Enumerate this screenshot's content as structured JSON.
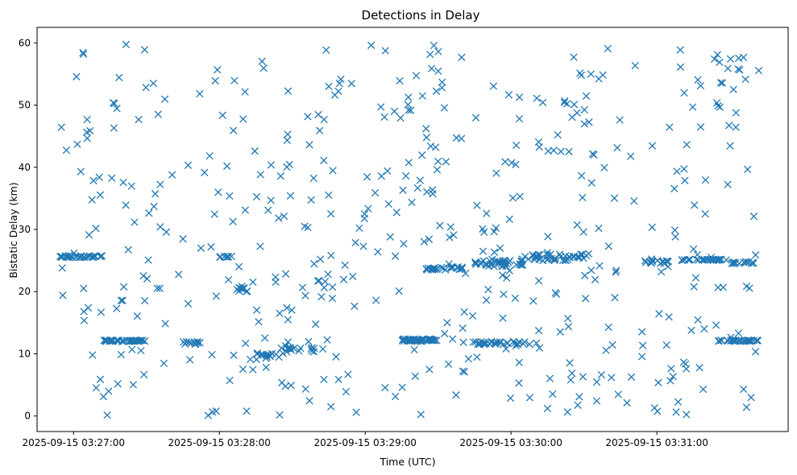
{
  "chart_data": {
    "type": "scatter",
    "title": "Detections in Delay",
    "xlabel": "Time (UTC)",
    "ylabel": "Bistatic Delay (km)",
    "marker": "x",
    "marker_color": "#1f77b4",
    "grid": false,
    "legend": "none",
    "xlim": [
      "2025-09-15 03:26:45",
      "2025-09-15 03:31:54"
    ],
    "ylim": [
      -2.5,
      62.5
    ],
    "xticks": [
      "2025-09-15 03:27:00",
      "2025-09-15 03:28:00",
      "2025-09-15 03:29:00",
      "2025-09-15 03:30:00",
      "2025-09-15 03:31:00"
    ],
    "yticks": [
      0,
      10,
      20,
      30,
      40,
      50,
      60
    ],
    "series": [
      {
        "generated": {
          "start": "2025-09-15 03:26:54",
          "end": "2025-09-15 03:31:42",
          "count": 900,
          "seed": 20250915,
          "clusters": [
            {
              "t0": "2025-09-15 03:26:54",
              "t1": "2025-09-15 03:27:12",
              "y0": 25.5,
              "y1": 25.8,
              "n": 30
            },
            {
              "t0": "2025-09-15 03:27:12",
              "t1": "2025-09-15 03:27:30",
              "y0": 12.0,
              "y1": 12.2,
              "n": 40
            },
            {
              "t0": "2025-09-15 03:27:45",
              "t1": "2025-09-15 03:27:52",
              "y0": 11.5,
              "y1": 12.0,
              "n": 12
            },
            {
              "t0": "2025-09-15 03:28:00",
              "t1": "2025-09-15 03:28:05",
              "y0": 25.5,
              "y1": 25.7,
              "n": 10
            },
            {
              "t0": "2025-09-15 03:28:07",
              "t1": "2025-09-15 03:28:12",
              "y0": 20.0,
              "y1": 21.0,
              "n": 10
            },
            {
              "t0": "2025-09-15 03:28:15",
              "t1": "2025-09-15 03:28:25",
              "y0": 9.0,
              "y1": 10.2,
              "n": 15
            },
            {
              "t0": "2025-09-15 03:28:25",
              "t1": "2025-09-15 03:28:40",
              "y0": 10.0,
              "y1": 11.0,
              "n": 15
            },
            {
              "t0": "2025-09-15 03:28:40",
              "t1": "2025-09-15 03:28:55",
              "y0": 20.0,
              "y1": 23.0,
              "n": 8
            },
            {
              "t0": "2025-09-15 03:29:15",
              "t1": "2025-09-15 03:29:30",
              "y0": 12.0,
              "y1": 12.4,
              "n": 45
            },
            {
              "t0": "2025-09-15 03:29:25",
              "t1": "2025-09-15 03:29:40",
              "y0": 23.5,
              "y1": 24.0,
              "n": 25
            },
            {
              "t0": "2025-09-15 03:29:45",
              "t1": "2025-09-15 03:30:05",
              "y0": 24.0,
              "y1": 25.0,
              "n": 40
            },
            {
              "t0": "2025-09-15 03:29:40",
              "t1": "2025-09-15 03:30:05",
              "y0": 11.5,
              "y1": 12.0,
              "n": 30
            },
            {
              "t0": "2025-09-15 03:30:05",
              "t1": "2025-09-15 03:30:30",
              "y0": 25.0,
              "y1": 26.0,
              "n": 40
            },
            {
              "t0": "2025-09-15 03:30:55",
              "t1": "2025-09-15 03:31:05",
              "y0": 24.5,
              "y1": 25.5,
              "n": 15
            },
            {
              "t0": "2025-09-15 03:31:10",
              "t1": "2025-09-15 03:31:30",
              "y0": 25.0,
              "y1": 25.2,
              "n": 25
            },
            {
              "t0": "2025-09-15 03:31:25",
              "t1": "2025-09-15 03:31:42",
              "y0": 12.0,
              "y1": 12.2,
              "n": 35
            },
            {
              "t0": "2025-09-15 03:31:30",
              "t1": "2025-09-15 03:31:42",
              "y0": 24.5,
              "y1": 24.8,
              "n": 15
            }
          ],
          "background_ymin": 0,
          "background_ymax": 60
        }
      }
    ]
  }
}
